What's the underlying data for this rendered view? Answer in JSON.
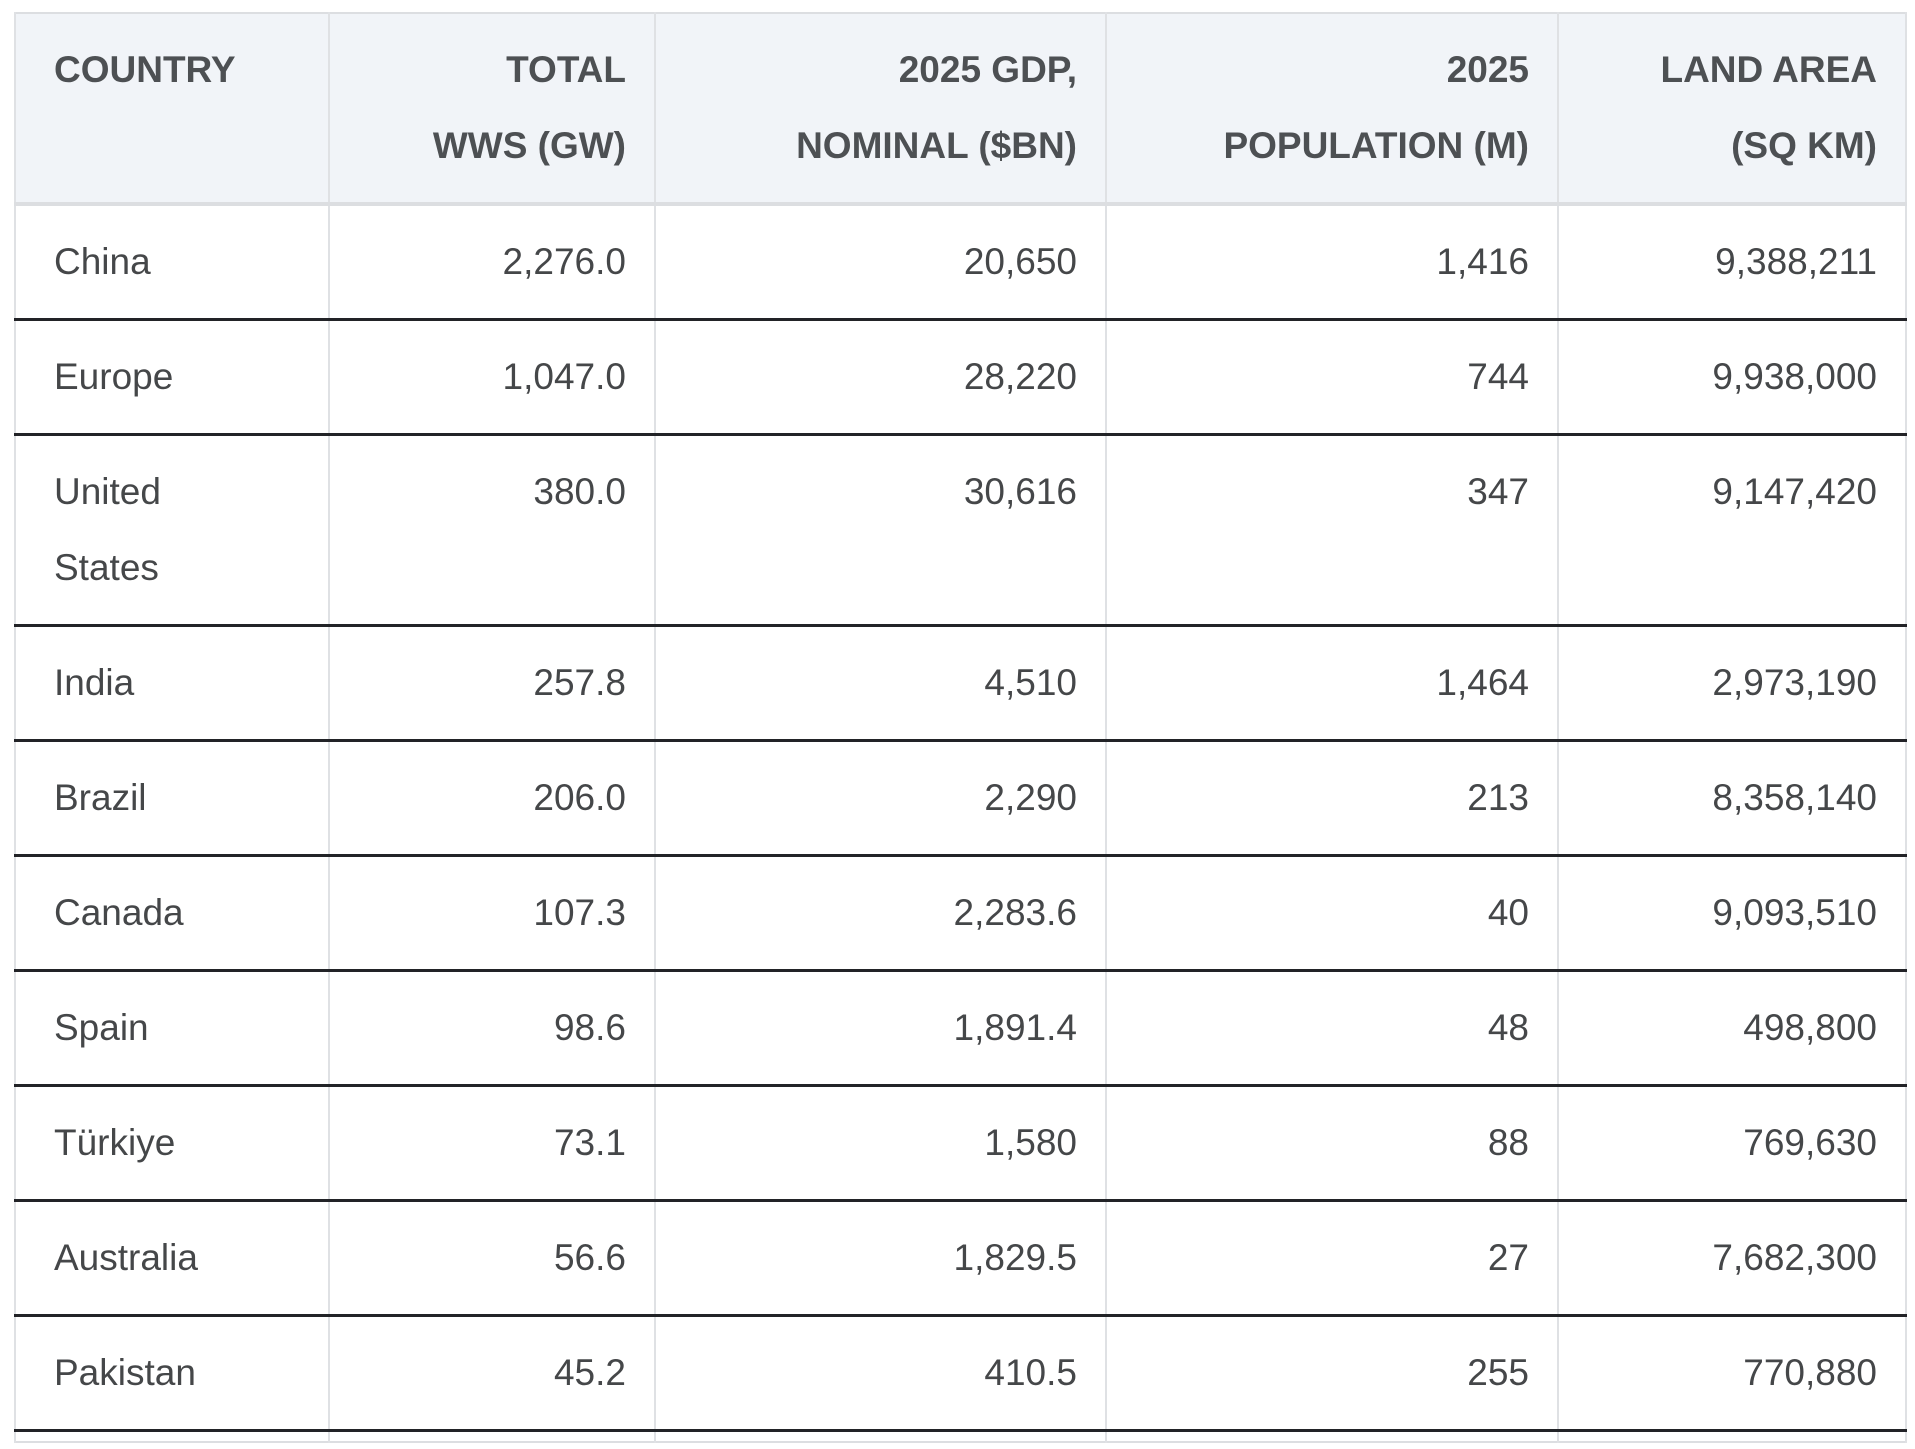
{
  "table": {
    "header": {
      "country": "COUNTRY",
      "wws": "TOTAL\nWWS (GW)",
      "gdp": "2025 GDP,\nNOMINAL ($BN)",
      "population": "2025\nPOPULATION (M)",
      "land_area": "LAND AREA\n(SQ KM)"
    },
    "rows": [
      {
        "country": "China",
        "wws": "2,276.0",
        "gdp": "20,650",
        "population": "1,416",
        "land_area": "9,388,211"
      },
      {
        "country": "Europe",
        "wws": "1,047.0",
        "gdp": "28,220",
        "population": "744",
        "land_area": "9,938,000"
      },
      {
        "country": "United\nStates",
        "wws": "380.0",
        "gdp": "30,616",
        "population": "347",
        "land_area": "9,147,420"
      },
      {
        "country": "India",
        "wws": "257.8",
        "gdp": "4,510",
        "population": "1,464",
        "land_area": "2,973,190"
      },
      {
        "country": "Brazil",
        "wws": "206.0",
        "gdp": "2,290",
        "population": "213",
        "land_area": "8,358,140"
      },
      {
        "country": "Canada",
        "wws": "107.3",
        "gdp": "2,283.6",
        "population": "40",
        "land_area": "9,093,510"
      },
      {
        "country": "Spain",
        "wws": "98.6",
        "gdp": "1,891.4",
        "population": "48",
        "land_area": "498,800"
      },
      {
        "country": "Türkiye",
        "wws": "73.1",
        "gdp": "1,580",
        "population": "88",
        "land_area": "769,630"
      },
      {
        "country": "Australia",
        "wws": "56.6",
        "gdp": "1,829.5",
        "population": "27",
        "land_area": "7,682,300"
      },
      {
        "country": "Pakistan",
        "wws": "45.2",
        "gdp": "410.5",
        "population": "255",
        "land_area": "770,880"
      }
    ]
  },
  "chart_data": {
    "type": "table",
    "title": "",
    "columns": [
      "Country",
      "Total WWS (GW)",
      "2025 GDP, Nominal ($bn)",
      "2025 Population (M)",
      "Land Area (sq km)"
    ],
    "rows": [
      [
        "China",
        2276.0,
        20650,
        1416,
        9388211
      ],
      [
        "Europe",
        1047.0,
        28220,
        744,
        9938000
      ],
      [
        "United States",
        380.0,
        30616,
        347,
        9147420
      ],
      [
        "India",
        257.8,
        4510,
        1464,
        2973190
      ],
      [
        "Brazil",
        206.0,
        2290,
        213,
        8358140
      ],
      [
        "Canada",
        107.3,
        2283.6,
        40,
        9093510
      ],
      [
        "Spain",
        98.6,
        1891.4,
        48,
        498800
      ],
      [
        "Türkiye",
        73.1,
        1580,
        88,
        769630
      ],
      [
        "Australia",
        56.6,
        1829.5,
        27,
        7682300
      ],
      [
        "Pakistan",
        45.2,
        410.5,
        255,
        770880
      ]
    ]
  },
  "colors": {
    "header_bg": "#f1f4f8",
    "light_border": "#dfe1e4",
    "dark_row_border": "#222327",
    "header_text": "#4d5053",
    "body_text": "#454749"
  }
}
